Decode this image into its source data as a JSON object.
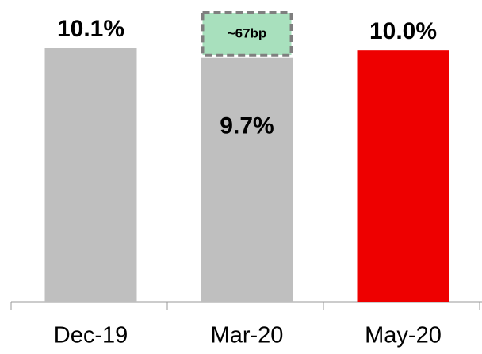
{
  "chart_data": {
    "type": "bar",
    "categories": [
      "Dec-19",
      "Mar-20",
      "May-20"
    ],
    "values": [
      10.1,
      9.7,
      10.0
    ],
    "value_labels": [
      "10.1%",
      "9.7%",
      "10.0%"
    ],
    "colors": [
      "#bfbfbf",
      "#bfbfbf",
      "#ee0000"
    ],
    "annotation": "~67bp"
  }
}
